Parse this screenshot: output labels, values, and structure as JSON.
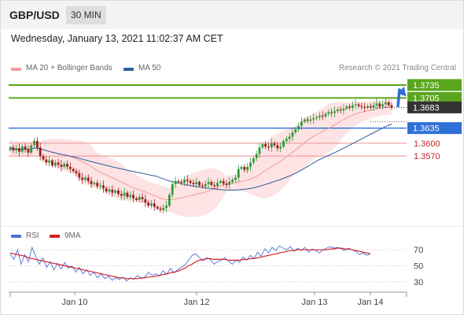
{
  "header": {
    "symbol": "GBP/USD",
    "interval": "30 MIN",
    "datetime": "Wednesday, January 13, 2021 11:02:37 AM CET"
  },
  "legend": {
    "ma20_label": "MA 20 + Bollinger Bands",
    "ma50_label": "MA 50",
    "credit": "Research © 2021 Trading Central",
    "rsi_label": "RSI",
    "ma9_label": "9MA"
  },
  "colors": {
    "up_candle": "#2e9a3a",
    "down_candle": "#9b1c1c",
    "bollinger_fill": "#fde0e0",
    "ma20": "#f29a9a",
    "ma50": "#2c5c9c",
    "resistance": "#5aa61e",
    "pivot": "#2f6fd8",
    "support": "#f29a9a",
    "support_text": "#c8242b",
    "rsi": "#4f72d8",
    "rsi_ma": "#d42027",
    "arrow": "#2f6fd8"
  },
  "chart_data": [
    {
      "type": "candlestick",
      "title": "GBP/USD 30 MIN",
      "x_tick_labels": [
        "Jan 10",
        "Jan 12",
        "Jan 13",
        "Jan 14"
      ],
      "ylim": [
        1.3415,
        1.3755
      ],
      "current_price": "1.3683",
      "levels": [
        {
          "label": "1.3735",
          "value": 1.3735,
          "kind": "resistance"
        },
        {
          "label": "1.3705",
          "value": 1.3705,
          "kind": "resistance"
        },
        {
          "label": "1.3635",
          "value": 1.3635,
          "kind": "pivot"
        },
        {
          "label": "1.3600",
          "value": 1.36,
          "kind": "support"
        },
        {
          "label": "1.3570",
          "value": 1.357,
          "kind": "support"
        }
      ],
      "close_series": [
        1.359,
        1.3583,
        1.3588,
        1.358,
        1.3592,
        1.3585,
        1.3578,
        1.3595,
        1.3605,
        1.359,
        1.357,
        1.3562,
        1.3555,
        1.356,
        1.3548,
        1.3555,
        1.355,
        1.3545,
        1.3552,
        1.3545,
        1.354,
        1.3535,
        1.353,
        1.352,
        1.3515,
        1.352,
        1.3512,
        1.3505,
        1.3508,
        1.35,
        1.3502,
        1.3495,
        1.3488,
        1.3492,
        1.3485,
        1.349,
        1.3482,
        1.3478,
        1.3485,
        1.3475,
        1.348,
        1.3472,
        1.3468,
        1.3475,
        1.347,
        1.3462,
        1.3455,
        1.346,
        1.3452,
        1.3448,
        1.3445,
        1.345,
        1.3455,
        1.348,
        1.3505,
        1.3512,
        1.351,
        1.3508,
        1.3515,
        1.3512,
        1.3508,
        1.3505,
        1.351,
        1.3502,
        1.35,
        1.3505,
        1.351,
        1.3503,
        1.35,
        1.3508,
        1.3512,
        1.3506,
        1.3503,
        1.351,
        1.3515,
        1.352,
        1.354,
        1.3545,
        1.3538,
        1.3545,
        1.3555,
        1.3565,
        1.3575,
        1.359,
        1.3598,
        1.3592,
        1.359,
        1.36,
        1.3595,
        1.3588,
        1.3592,
        1.3605,
        1.361,
        1.3615,
        1.3625,
        1.3632,
        1.364,
        1.365,
        1.3655,
        1.3652,
        1.3655,
        1.3658,
        1.366,
        1.3664,
        1.3662,
        1.3668,
        1.3672,
        1.367,
        1.3674,
        1.3678,
        1.3676,
        1.368,
        1.3685,
        1.3682,
        1.3688,
        1.369,
        1.3686,
        1.3684,
        1.3682,
        1.3686,
        1.3683,
        1.3688,
        1.3692,
        1.3685,
        1.369,
        1.3695,
        1.3688,
        1.3683
      ]
    },
    {
      "type": "line",
      "title": "RSI",
      "ylim": [
        20,
        80
      ],
      "y_ticks": [
        "70",
        "50",
        "30"
      ],
      "series": [
        {
          "name": "RSI",
          "values": [
            65,
            58,
            70,
            52,
            64,
            55,
            73,
            62,
            52,
            60,
            48,
            55,
            45,
            53,
            46,
            54,
            47,
            50,
            42,
            48,
            40,
            45,
            38,
            42,
            35,
            40,
            34,
            37,
            32,
            35,
            33,
            36,
            31,
            35,
            33,
            38,
            34,
            36,
            42,
            38,
            40,
            37,
            44,
            39,
            47,
            41,
            45,
            48,
            51,
            57,
            63,
            65,
            60,
            56,
            60,
            58,
            52,
            55,
            57,
            60,
            56,
            52,
            57,
            54,
            61,
            57,
            63,
            59,
            67,
            62,
            71,
            66,
            73,
            69,
            75,
            72,
            70,
            74,
            68,
            72,
            69,
            73,
            67,
            71,
            69,
            66,
            70,
            72,
            74,
            72,
            73,
            71,
            69,
            72,
            70,
            68,
            64,
            66,
            63,
            65
          ]
        },
        {
          "name": "9MA",
          "values": [
            66,
            65,
            64,
            63,
            62,
            60,
            59,
            58,
            57,
            56,
            55,
            54,
            53,
            52,
            51,
            50,
            49,
            48,
            47,
            46,
            45,
            44,
            43,
            42,
            41,
            40,
            39,
            38,
            37,
            36,
            35,
            35,
            34,
            34,
            34,
            34,
            35,
            35,
            36,
            36,
            37,
            38,
            39,
            40,
            41,
            42,
            43,
            45,
            47,
            50,
            52,
            55,
            57,
            58,
            59,
            59,
            58,
            58,
            58,
            58,
            57,
            57,
            57,
            57,
            58,
            58,
            59,
            59,
            60,
            61,
            62,
            63,
            64,
            65,
            66,
            67,
            68,
            69,
            69,
            70,
            70,
            70,
            70,
            70,
            70,
            70,
            70,
            70,
            71,
            71,
            72,
            72,
            71,
            71,
            70,
            69,
            68,
            67,
            66,
            65
          ]
        }
      ]
    }
  ]
}
